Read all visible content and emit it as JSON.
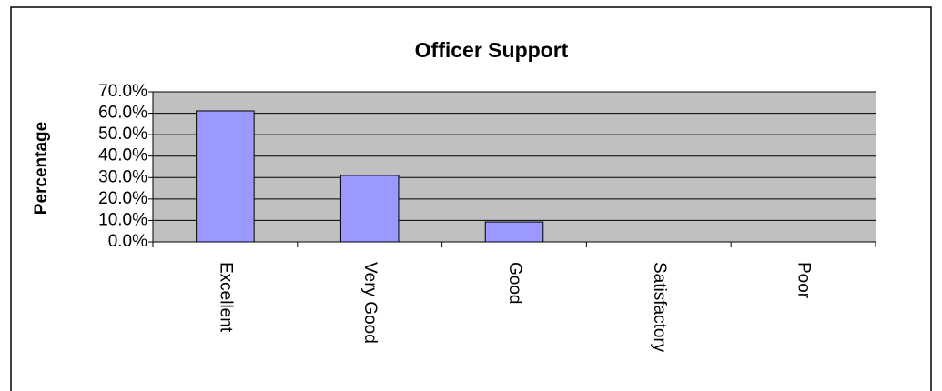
{
  "chart_data": {
    "type": "bar",
    "title": "Officer Support",
    "y_label": "Percentage",
    "categories": [
      "Excellent",
      "Very Good",
      "Good",
      "Satisfactory",
      "Poor"
    ],
    "values": [
      61.1,
      31.0,
      9.3,
      0,
      0
    ],
    "color": "#9999ff",
    "plot_background": "#c0c0c0",
    "ylim": [
      0,
      70
    ],
    "yticks": [
      {
        "value": 0,
        "label": "0.0%"
      },
      {
        "value": 10,
        "label": "10.0%"
      },
      {
        "value": 20,
        "label": "20.0%"
      },
      {
        "value": 30,
        "label": "30.0%"
      },
      {
        "value": 40,
        "label": "40.0%"
      },
      {
        "value": 50,
        "label": "50.0%"
      },
      {
        "value": 60,
        "label": "60.0%"
      },
      {
        "value": 70,
        "label": "70.0%"
      }
    ],
    "grid": true
  }
}
